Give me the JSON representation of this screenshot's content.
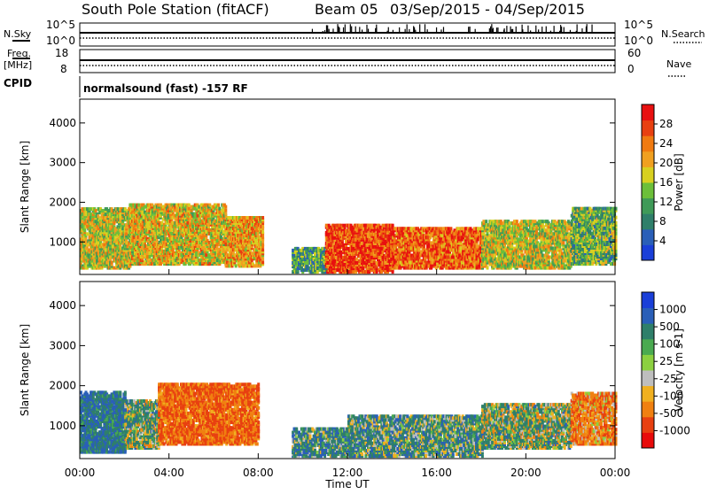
{
  "header": {
    "station": "South Pole Station (fitACF)",
    "beam": "Beam 05",
    "dates": "03/Sep/2015 - 04/Sep/2015"
  },
  "panels": {
    "nsky_label": "N.Sky",
    "nsearch_label": "N.Search",
    "nsky_ticks": [
      "10^5",
      "10^0"
    ],
    "nsearch_ticks": [
      "10^5",
      "10^0"
    ],
    "freq_label_1": "Freq.",
    "freq_label_2": "[MHz]",
    "freq_ticks": [
      "18",
      "8"
    ],
    "nave_label": "Nave",
    "nave_ticks": [
      "60",
      "0"
    ],
    "cpid_label": "CPID",
    "cpid_text": "normalsound (fast) -157 RF"
  },
  "axes": {
    "ylabel": "Slant Range [km]",
    "xlabel": "Time UT",
    "xticks": [
      "00:00",
      "04:00",
      "08:00",
      "12:00",
      "16:00",
      "20:00",
      "00:00"
    ],
    "yticks": [
      "1000",
      "2000",
      "3000",
      "4000"
    ]
  },
  "colorbars": {
    "power": {
      "label": "Power [dB]",
      "ticks": [
        "4",
        "8",
        "12",
        "16",
        "20",
        "24",
        "28"
      ],
      "colors": [
        "#1a3fd8",
        "#2a5fb8",
        "#2f7f6a",
        "#3f9a58",
        "#6cbf3a",
        "#d8d020",
        "#f0a020",
        "#f07a10",
        "#e84010",
        "#e81010"
      ]
    },
    "velocity": {
      "label": "Velocity [m s-1]",
      "ticks": [
        "1000",
        "500",
        "100",
        "25",
        "-25",
        "-100",
        "-500",
        "-1000"
      ],
      "colors": [
        "#1a3fd8",
        "#2a5fb8",
        "#2f7f6a",
        "#4aaa50",
        "#8cd040",
        "#bebebe",
        "#f0b020",
        "#f08010",
        "#e84010",
        "#e80a0a"
      ]
    }
  },
  "chart_data": [
    {
      "type": "heatmap",
      "name": "power",
      "x_range_hours": [
        0,
        24
      ],
      "y_range_km": [
        180,
        4600
      ],
      "colorbar_range_db": [
        0,
        30
      ],
      "regions": [
        {
          "t0": 0.0,
          "t1": 2.2,
          "r0": 300,
          "r1": 1800,
          "value": 16
        },
        {
          "t0": 2.2,
          "t1": 6.5,
          "r0": 400,
          "r1": 1900,
          "value": 18
        },
        {
          "t0": 6.5,
          "t1": 8.2,
          "r0": 350,
          "r1": 1600,
          "value": 20
        },
        {
          "t0": 9.5,
          "t1": 11.0,
          "r0": 200,
          "r1": 800,
          "value": 10
        },
        {
          "t0": 11.0,
          "t1": 14.0,
          "r0": 200,
          "r1": 1400,
          "value": 26
        },
        {
          "t0": 14.0,
          "t1": 18.0,
          "r0": 300,
          "r1": 1300,
          "value": 24
        },
        {
          "t0": 18.0,
          "t1": 22.0,
          "r0": 300,
          "r1": 1500,
          "value": 16
        },
        {
          "t0": 22.0,
          "t1": 24.0,
          "r0": 400,
          "r1": 1800,
          "value": 12
        }
      ]
    },
    {
      "type": "heatmap",
      "name": "velocity",
      "x_range_hours": [
        0,
        24
      ],
      "y_range_km": [
        180,
        4600
      ],
      "regions": [
        {
          "t0": 0.0,
          "t1": 2.0,
          "r0": 300,
          "r1": 1800,
          "value": 300
        },
        {
          "t0": 2.0,
          "t1": 3.5,
          "r0": 400,
          "r1": 1600,
          "value": 100
        },
        {
          "t0": 3.5,
          "t1": 8.0,
          "r0": 500,
          "r1": 2000,
          "value": -300
        },
        {
          "t0": 9.5,
          "t1": 12.0,
          "r0": 200,
          "r1": 900,
          "value": 200
        },
        {
          "t0": 12.0,
          "t1": 18.0,
          "r0": 200,
          "r1": 1200,
          "value": 150
        },
        {
          "t0": 18.0,
          "t1": 22.0,
          "r0": 400,
          "r1": 1500,
          "value": 80
        },
        {
          "t0": 22.0,
          "t1": 24.0,
          "r0": 500,
          "r1": 1800,
          "value": -200
        }
      ]
    }
  ]
}
